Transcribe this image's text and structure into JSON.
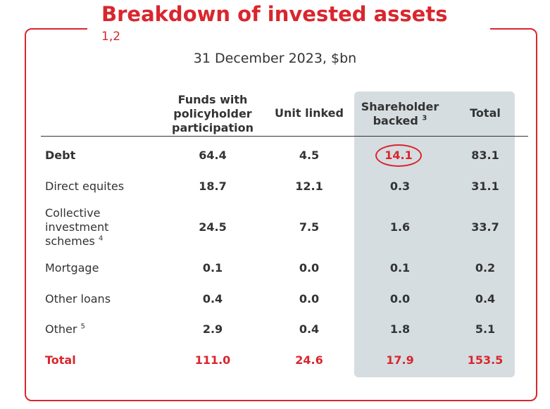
{
  "title": "Breakdown of invested assets",
  "footnote_refs": "1,2",
  "subtitle": "31 December 2023, $bn",
  "colors": {
    "accent": "#d9262e",
    "shade": "#d5dde1"
  },
  "columns": [
    {
      "line1": "Funds with",
      "line2": "policyholder",
      "line3": "participation"
    },
    {
      "line1": "Unit linked"
    },
    {
      "line1": "Shareholder",
      "line2": "backed",
      "sup": "3"
    },
    {
      "line1": "Total"
    }
  ],
  "rows": [
    {
      "label": "Debt",
      "values": [
        "64.4",
        "4.5",
        "14.1",
        "83.1"
      ]
    },
    {
      "label": "Direct equites",
      "values": [
        "18.7",
        "12.1",
        "0.3",
        "31.1"
      ]
    },
    {
      "label_lines": [
        "Collective",
        "investment",
        "schemes"
      ],
      "sup": "4",
      "values": [
        "24.5",
        "7.5",
        "1.6",
        "33.7"
      ]
    },
    {
      "label": "Mortgage",
      "values": [
        "0.1",
        "0.0",
        "0.1",
        "0.2"
      ]
    },
    {
      "label": "Other loans",
      "values": [
        "0.4",
        "0.0",
        "0.0",
        "0.4"
      ]
    },
    {
      "label": "Other",
      "sup": "5",
      "values": [
        "2.9",
        "0.4",
        "1.8",
        "5.1"
      ]
    },
    {
      "label": "Total",
      "values": [
        "111.0",
        "24.6",
        "17.9",
        "153.5"
      ]
    }
  ]
}
